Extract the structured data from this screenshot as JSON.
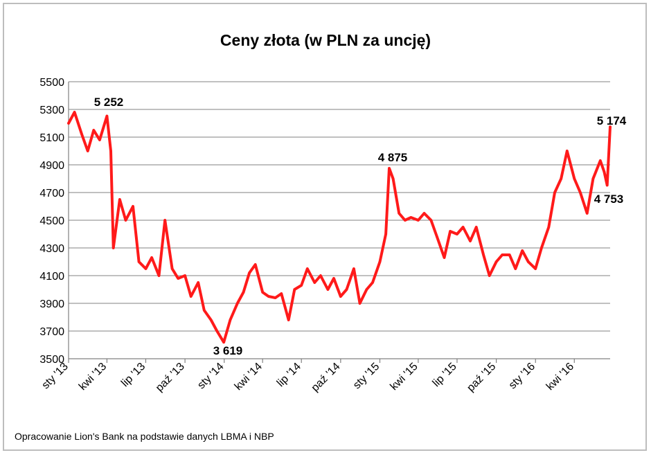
{
  "chart_data": {
    "type": "line",
    "title": "Ceny złota (w PLN za uncję)",
    "xlabel": "",
    "ylabel": "",
    "ylim": [
      3500,
      5500
    ],
    "yticks": [
      3500,
      3700,
      3900,
      4100,
      4300,
      4500,
      4700,
      4900,
      5100,
      5300,
      5500
    ],
    "x_tick_labels": [
      "sty '13",
      "kwi '13",
      "lip '13",
      "paź '13",
      "sty '14",
      "kwi '14",
      "lip '14",
      "paź '14",
      "sty '15",
      "kwi '15",
      "lip '15",
      "paź '15",
      "sty '16",
      "kwi '16"
    ],
    "x_tick_dates": [
      "2013-01-01",
      "2013-04-01",
      "2013-07-01",
      "2013-10-01",
      "2014-01-01",
      "2014-04-01",
      "2014-07-01",
      "2014-10-01",
      "2015-01-01",
      "2015-04-01",
      "2015-07-01",
      "2015-10-01",
      "2016-01-01",
      "2016-04-01"
    ],
    "x_range": [
      "2013-01-01",
      "2016-06-24"
    ],
    "grid": true,
    "line_color": "#ff1a1a",
    "series": [
      {
        "x": [
          "2013-01-01",
          "2013-01-15",
          "2013-02-01",
          "2013-02-15",
          "2013-03-01",
          "2013-03-15",
          "2013-04-01",
          "2013-04-10",
          "2013-04-16",
          "2013-05-01",
          "2013-05-15",
          "2013-06-01",
          "2013-06-15",
          "2013-07-01",
          "2013-07-15",
          "2013-08-01",
          "2013-08-15",
          "2013-09-01",
          "2013-09-15",
          "2013-10-01",
          "2013-10-15",
          "2013-11-01",
          "2013-11-15",
          "2013-12-01",
          "2013-12-15",
          "2013-12-31",
          "2014-01-15",
          "2014-02-01",
          "2014-02-15",
          "2014-03-01",
          "2014-03-15",
          "2014-04-01",
          "2014-04-15",
          "2014-05-01",
          "2014-05-15",
          "2014-06-01",
          "2014-06-15",
          "2014-07-01",
          "2014-07-15",
          "2014-08-01",
          "2014-08-15",
          "2014-09-01",
          "2014-09-15",
          "2014-10-01",
          "2014-10-15",
          "2014-11-01",
          "2014-11-15",
          "2014-12-01",
          "2014-12-15",
          "2015-01-01",
          "2015-01-15",
          "2015-01-23",
          "2015-02-01",
          "2015-02-15",
          "2015-03-01",
          "2015-03-15",
          "2015-04-01",
          "2015-04-15",
          "2015-05-01",
          "2015-05-15",
          "2015-06-01",
          "2015-06-15",
          "2015-07-01",
          "2015-07-15",
          "2015-08-01",
          "2015-08-15",
          "2015-09-01",
          "2015-09-15",
          "2015-10-01",
          "2015-10-15",
          "2015-11-01",
          "2015-11-15",
          "2015-12-01",
          "2015-12-15",
          "2016-01-01",
          "2016-01-15",
          "2016-02-01",
          "2016-02-15",
          "2016-03-01",
          "2016-03-15",
          "2016-04-01",
          "2016-04-15",
          "2016-05-01",
          "2016-05-15",
          "2016-06-01",
          "2016-06-10",
          "2016-06-17",
          "2016-06-24"
        ],
        "y": [
          5200,
          5280,
          5120,
          5000,
          5150,
          5080,
          5252,
          5000,
          4300,
          4650,
          4500,
          4600,
          4200,
          4150,
          4230,
          4100,
          4500,
          4150,
          4080,
          4100,
          3950,
          4050,
          3850,
          3780,
          3700,
          3619,
          3780,
          3900,
          3980,
          4120,
          4180,
          3980,
          3950,
          3940,
          3970,
          3780,
          4000,
          4030,
          4150,
          4050,
          4100,
          4000,
          4080,
          3950,
          4000,
          4150,
          3900,
          4000,
          4050,
          4200,
          4400,
          4875,
          4800,
          4550,
          4500,
          4520,
          4500,
          4550,
          4500,
          4380,
          4230,
          4420,
          4400,
          4450,
          4350,
          4450,
          4250,
          4100,
          4200,
          4250,
          4250,
          4150,
          4280,
          4200,
          4150,
          4300,
          4450,
          4700,
          4800,
          5000,
          4800,
          4700,
          4550,
          4800,
          4930,
          4850,
          4753,
          5174
        ]
      }
    ],
    "annotations": [
      "5 252",
      "3 619",
      "4 875",
      "5 174",
      "4 753"
    ]
  },
  "source_note": "Opracowanie Lion's Bank na podstawie danych LBMA i NBP"
}
